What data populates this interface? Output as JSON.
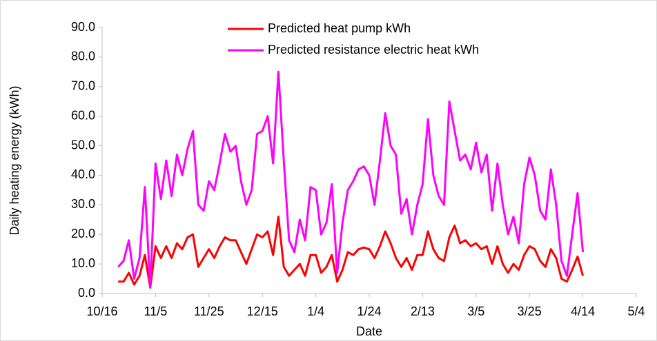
{
  "chart_data": {
    "type": "line",
    "x_label": "Date",
    "y_label": "Daily heating energy (kWh)",
    "legend": "top",
    "grid": false,
    "xlim": [
      "10/16",
      "5/4"
    ],
    "xticks": [
      "10/16",
      "11/5",
      "11/25",
      "12/15",
      "1/4",
      "1/24",
      "2/13",
      "3/5",
      "3/25",
      "4/14",
      "5/4"
    ],
    "ylim": [
      0,
      90
    ],
    "yticks": [
      {
        "value": 0,
        "label": "0.0"
      },
      {
        "value": 10,
        "label": "10.0"
      },
      {
        "value": 20,
        "label": "20.0"
      },
      {
        "value": 30,
        "label": "30.0"
      },
      {
        "value": 40,
        "label": "40.0"
      },
      {
        "value": 50,
        "label": "50.0"
      },
      {
        "value": 60,
        "label": "60.0"
      },
      {
        "value": 70,
        "label": "70.0"
      },
      {
        "value": 80,
        "label": "80.0"
      },
      {
        "value": 90,
        "label": "90.0"
      }
    ],
    "x": [
      "10/22",
      "10/24",
      "10/26",
      "10/28",
      "10/30",
      "11/1",
      "11/3",
      "11/5",
      "11/7",
      "11/9",
      "11/11",
      "11/13",
      "11/15",
      "11/17",
      "11/19",
      "11/21",
      "11/23",
      "11/25",
      "11/27",
      "11/29",
      "12/1",
      "12/3",
      "12/5",
      "12/7",
      "12/9",
      "12/11",
      "12/13",
      "12/15",
      "12/17",
      "12/19",
      "12/21",
      "12/23",
      "12/25",
      "12/27",
      "12/29",
      "12/31",
      "1/2",
      "1/4",
      "1/6",
      "1/8",
      "1/10",
      "1/12",
      "1/14",
      "1/16",
      "1/18",
      "1/20",
      "1/22",
      "1/24",
      "1/26",
      "1/28",
      "1/30",
      "2/1",
      "2/3",
      "2/5",
      "2/7",
      "2/9",
      "2/11",
      "2/13",
      "2/15",
      "2/17",
      "2/19",
      "2/21",
      "2/23",
      "2/25",
      "2/27",
      "3/1",
      "3/3",
      "3/5",
      "3/7",
      "3/9",
      "3/11",
      "3/13",
      "3/15",
      "3/17",
      "3/19",
      "3/21",
      "3/23",
      "3/25",
      "3/27",
      "3/29",
      "3/31",
      "4/2",
      "4/4",
      "4/6",
      "4/8",
      "4/10",
      "4/12",
      "4/14"
    ],
    "series": [
      {
        "name": "Predicted heat pump kWh",
        "color": "#ff0000",
        "values": [
          4,
          4,
          7,
          3,
          6,
          13,
          2,
          16,
          12,
          16,
          12,
          17,
          15,
          19,
          20,
          9,
          12,
          15,
          12,
          16,
          19,
          18,
          18,
          14,
          10,
          15,
          20,
          19,
          21,
          13,
          26,
          9,
          6,
          8,
          10,
          6,
          13,
          13,
          7,
          9,
          13,
          4,
          8,
          14,
          13,
          15,
          15.5,
          15,
          12,
          16,
          21,
          17,
          12,
          9,
          12,
          8,
          13,
          13,
          21,
          15,
          12,
          11,
          19,
          23,
          17,
          18,
          16,
          17,
          15,
          16,
          10,
          16,
          10,
          7,
          10,
          8,
          13,
          16,
          15,
          11,
          9,
          15,
          12,
          5,
          4,
          8,
          12.5,
          6
        ]
      },
      {
        "name": "Predicted resistance electric heat kWh",
        "color": "#ff00ff",
        "values": [
          9,
          11,
          18,
          5,
          12,
          36,
          2,
          44,
          32,
          45,
          33,
          47,
          40,
          49,
          55,
          30,
          28,
          38,
          35,
          44,
          54,
          48,
          50,
          38,
          30,
          35,
          54,
          55,
          60,
          44,
          75,
          45,
          18,
          14,
          25,
          18,
          36,
          35,
          20,
          24,
          37,
          7,
          24,
          35,
          38,
          42,
          43,
          40,
          30,
          45,
          61,
          50,
          47,
          27,
          32,
          20,
          30,
          37,
          59,
          40,
          33,
          30,
          65,
          55,
          45,
          47,
          42,
          51,
          41,
          47,
          28,
          44,
          30,
          20,
          26,
          17,
          37,
          46,
          40,
          28,
          25,
          42,
          30,
          11,
          6,
          20,
          34,
          14
        ]
      }
    ]
  }
}
